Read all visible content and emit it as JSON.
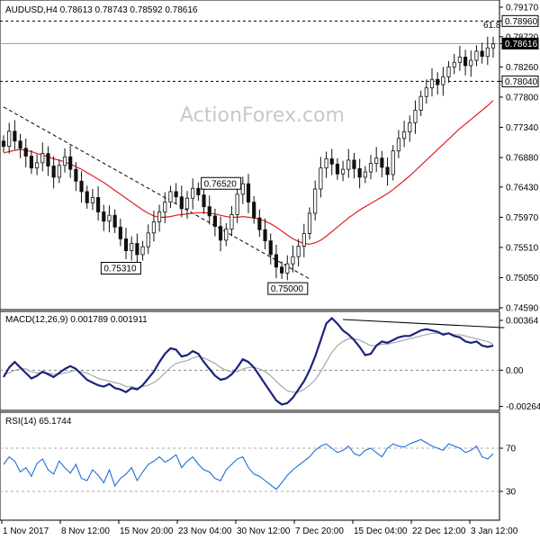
{
  "chart_data": [
    {
      "type": "candlestick",
      "header": "AUDUSD,H4  0.78613 0.78743 0.78592 0.78616",
      "watermark": "ActionForex.com",
      "ylim": [
        0.7459,
        0.7917
      ],
      "y_ticks": [
        {
          "v": 0.7917,
          "label": "0.79170"
        },
        {
          "v": 0.7896,
          "label": "0.78960"
        },
        {
          "v": 0.7872,
          "label": "0.78720"
        },
        {
          "v": 0.78616,
          "label": "0.78616"
        },
        {
          "v": 0.7826,
          "label": "0.78260"
        },
        {
          "v": 0.7804,
          "label": "0.78040"
        },
        {
          "v": 0.778,
          "label": "0.77800"
        },
        {
          "v": 0.7734,
          "label": "0.77340"
        },
        {
          "v": 0.7688,
          "label": "0.76880"
        },
        {
          "v": 0.7643,
          "label": "0.76430"
        },
        {
          "v": 0.7597,
          "label": "0.75970"
        },
        {
          "v": 0.7551,
          "label": "0.75510"
        },
        {
          "v": 0.7505,
          "label": "0.75050"
        },
        {
          "v": 0.7459,
          "label": "0.74590"
        }
      ],
      "highlight_levels": [
        {
          "v": 0.7896,
          "label": "0.78960",
          "style": "dashed"
        },
        {
          "v": 0.7804,
          "label": "0.78040",
          "style": "dashed"
        }
      ],
      "current_price": {
        "v": 0.78616,
        "label": "0.78616"
      },
      "fib_label": "61.8",
      "annotations": [
        {
          "label": "0.76520",
          "v": 0.7652,
          "bar": 42
        },
        {
          "label": "0.75310",
          "v": 0.7531,
          "bar": 24
        },
        {
          "label": "0.75000",
          "v": 0.75,
          "bar": 54
        }
      ],
      "trendline": {
        "from": {
          "bar": 0,
          "v": 0.7765
        },
        "to": {
          "bar": 55,
          "v": 0.7503
        }
      },
      "closes": [
        0.7705,
        0.7728,
        0.7713,
        0.7702,
        0.769,
        0.7672,
        0.768,
        0.7694,
        0.7675,
        0.7658,
        0.7676,
        0.7689,
        0.767,
        0.7652,
        0.7636,
        0.7619,
        0.7627,
        0.7605,
        0.7591,
        0.76,
        0.7582,
        0.7564,
        0.7546,
        0.7557,
        0.754,
        0.7552,
        0.7573,
        0.759,
        0.7605,
        0.762,
        0.7636,
        0.7628,
        0.761,
        0.7626,
        0.7641,
        0.7631,
        0.7613,
        0.7599,
        0.7583,
        0.7562,
        0.7579,
        0.7601,
        0.7632,
        0.7648,
        0.762,
        0.7596,
        0.7578,
        0.7561,
        0.754,
        0.7521,
        0.7512,
        0.7526,
        0.7537,
        0.7553,
        0.7572,
        0.7603,
        0.764,
        0.7672,
        0.7686,
        0.7678,
        0.7663,
        0.767,
        0.7684,
        0.7671,
        0.7658,
        0.7666,
        0.7679,
        0.7687,
        0.7673,
        0.7662,
        0.7698,
        0.7717,
        0.7727,
        0.7741,
        0.776,
        0.7781,
        0.7794,
        0.7807,
        0.7799,
        0.7811,
        0.7826,
        0.7833,
        0.7841,
        0.7828,
        0.7836,
        0.785,
        0.7842,
        0.7855,
        0.7861
      ],
      "ma": [
        0.7695,
        0.7697,
        0.7699,
        0.77,
        0.7699,
        0.7697,
        0.7694,
        0.7692,
        0.7689,
        0.7686,
        0.7684,
        0.7681,
        0.7678,
        0.7674,
        0.767,
        0.7665,
        0.766,
        0.7655,
        0.765,
        0.7644,
        0.7638,
        0.7632,
        0.7626,
        0.762,
        0.7614,
        0.7608,
        0.7603,
        0.7599,
        0.7597,
        0.7597,
        0.7598,
        0.76,
        0.7601,
        0.7602,
        0.7603,
        0.7604,
        0.7604,
        0.7603,
        0.7602,
        0.76,
        0.7598,
        0.7597,
        0.7597,
        0.7598,
        0.7597,
        0.7596,
        0.7594,
        0.7591,
        0.7587,
        0.7582,
        0.7576,
        0.757,
        0.7564,
        0.756,
        0.7557,
        0.7556,
        0.7558,
        0.7562,
        0.7568,
        0.7575,
        0.7582,
        0.7589,
        0.7596,
        0.7602,
        0.7608,
        0.7613,
        0.7618,
        0.7623,
        0.7628,
        0.7633,
        0.7639,
        0.7646,
        0.7653,
        0.766,
        0.7668,
        0.7676,
        0.7684,
        0.7692,
        0.77,
        0.7708,
        0.7716,
        0.7724,
        0.7732,
        0.7739,
        0.7746,
        0.7753,
        0.776,
        0.7767,
        0.7775
      ]
    },
    {
      "type": "line",
      "header": "MACD(12,26,9) 0.001789 0.001911",
      "ylim": [
        -0.0028,
        0.0039
      ],
      "y_ticks": [
        {
          "v": 0.00364,
          "label": "0.00364"
        },
        {
          "v": 0.0,
          "label": "0.00"
        },
        {
          "v": -0.002644,
          "label": "-0.002644"
        }
      ],
      "macd": [
        -0.0005,
        0.0002,
        0.0006,
        0.0002,
        -0.0002,
        -0.0006,
        -0.0004,
        -0.0001,
        -0.0003,
        -0.0005,
        -0.0002,
        0.0001,
        0.0003,
        0.0001,
        -0.0003,
        -0.0007,
        -0.0009,
        -0.0011,
        -0.0012,
        -0.001,
        -0.0013,
        -0.0014,
        -0.0016,
        -0.0013,
        -0.0014,
        -0.0011,
        -0.0006,
        -0.0001,
        0.0006,
        0.0012,
        0.0016,
        0.0015,
        0.001,
        0.0011,
        0.0014,
        0.0012,
        0.0006,
        0.0001,
        -0.0004,
        -0.0007,
        -0.0006,
        -0.0003,
        0.0002,
        0.0008,
        0.0006,
        0.0002,
        -0.0004,
        -0.001,
        -0.0016,
        -0.0022,
        -0.0025,
        -0.0024,
        -0.002,
        -0.0014,
        -0.0008,
        0.0,
        0.001,
        0.0022,
        0.0034,
        0.0038,
        0.0034,
        0.0029,
        0.0026,
        0.0022,
        0.0017,
        0.0011,
        0.0012,
        0.0018,
        0.0021,
        0.002,
        0.0022,
        0.0024,
        0.0025,
        0.0025,
        0.0027,
        0.0029,
        0.003,
        0.0029,
        0.0028,
        0.0026,
        0.0027,
        0.0025,
        0.0024,
        0.0021,
        0.002,
        0.0021,
        0.0018,
        0.0017,
        0.0018
      ],
      "signal": [
        -0.0003,
        -0.0002,
        0.0,
        0.0001,
        0.0001,
        -0.0001,
        -0.0002,
        -0.0002,
        -0.0002,
        -0.0003,
        -0.0003,
        -0.0002,
        -0.0001,
        0.0,
        -0.0001,
        -0.0002,
        -0.0004,
        -0.0006,
        -0.0007,
        -0.0008,
        -0.0009,
        -0.001,
        -0.0012,
        -0.0012,
        -0.0013,
        -0.0012,
        -0.0011,
        -0.0009,
        -0.0006,
        -0.0002,
        0.0002,
        0.0005,
        0.0006,
        0.0007,
        0.0009,
        0.001,
        0.0009,
        0.0007,
        0.0005,
        0.0002,
        0.0,
        -0.0001,
        -0.0001,
        0.0001,
        0.0002,
        0.0002,
        0.0001,
        -0.0001,
        -0.0004,
        -0.0008,
        -0.0012,
        -0.0015,
        -0.0016,
        -0.0016,
        -0.0014,
        -0.0011,
        -0.0007,
        -0.0001,
        0.0006,
        0.0013,
        0.0018,
        0.0021,
        0.0023,
        0.0023,
        0.0022,
        0.002,
        0.0018,
        0.0018,
        0.0019,
        0.0019,
        0.002,
        0.0021,
        0.0022,
        0.0023,
        0.0024,
        0.0025,
        0.0026,
        0.0027,
        0.0027,
        0.0027,
        0.0027,
        0.0026,
        0.0026,
        0.0025,
        0.0024,
        0.0023,
        0.0022,
        0.0021,
        0.0019
      ],
      "divergence_line": {
        "from": {
          "bar": 61,
          "v": 0.0037
        },
        "to": {
          "bar": 90,
          "v": 0.0031
        }
      }
    },
    {
      "type": "line",
      "header": "RSI(14) 65.1744",
      "ylim": [
        5,
        100
      ],
      "y_ticks": [
        {
          "v": 70,
          "label": "70"
        },
        {
          "v": 30,
          "label": "30"
        }
      ],
      "levels": [
        70,
        30
      ],
      "rsi": [
        55,
        62,
        58,
        48,
        52,
        44,
        56,
        60,
        50,
        46,
        58,
        52,
        47,
        55,
        42,
        40,
        50,
        45,
        38,
        50,
        35,
        42,
        46,
        52,
        40,
        48,
        55,
        58,
        62,
        57,
        60,
        64,
        52,
        58,
        62,
        55,
        50,
        48,
        42,
        40,
        50,
        55,
        60,
        62,
        52,
        46,
        44,
        40,
        36,
        32,
        38,
        45,
        50,
        54,
        58,
        62,
        68,
        72,
        74,
        70,
        66,
        68,
        72,
        65,
        63,
        68,
        70,
        66,
        62,
        70,
        74,
        72,
        71,
        74,
        76,
        78,
        75,
        72,
        70,
        68,
        74,
        72,
        70,
        66,
        68,
        72,
        62,
        60,
        65
      ],
      "x_labels": [
        "1 Nov 2017",
        "8 Nov 12:00",
        "15 Nov 20:00",
        "23 Nov 04:00",
        "30 Nov 12:00",
        "7 Dec 20:00",
        "15 Dec 04:00",
        "22 Dec 12:00",
        "3 Jan 12:00"
      ]
    }
  ]
}
